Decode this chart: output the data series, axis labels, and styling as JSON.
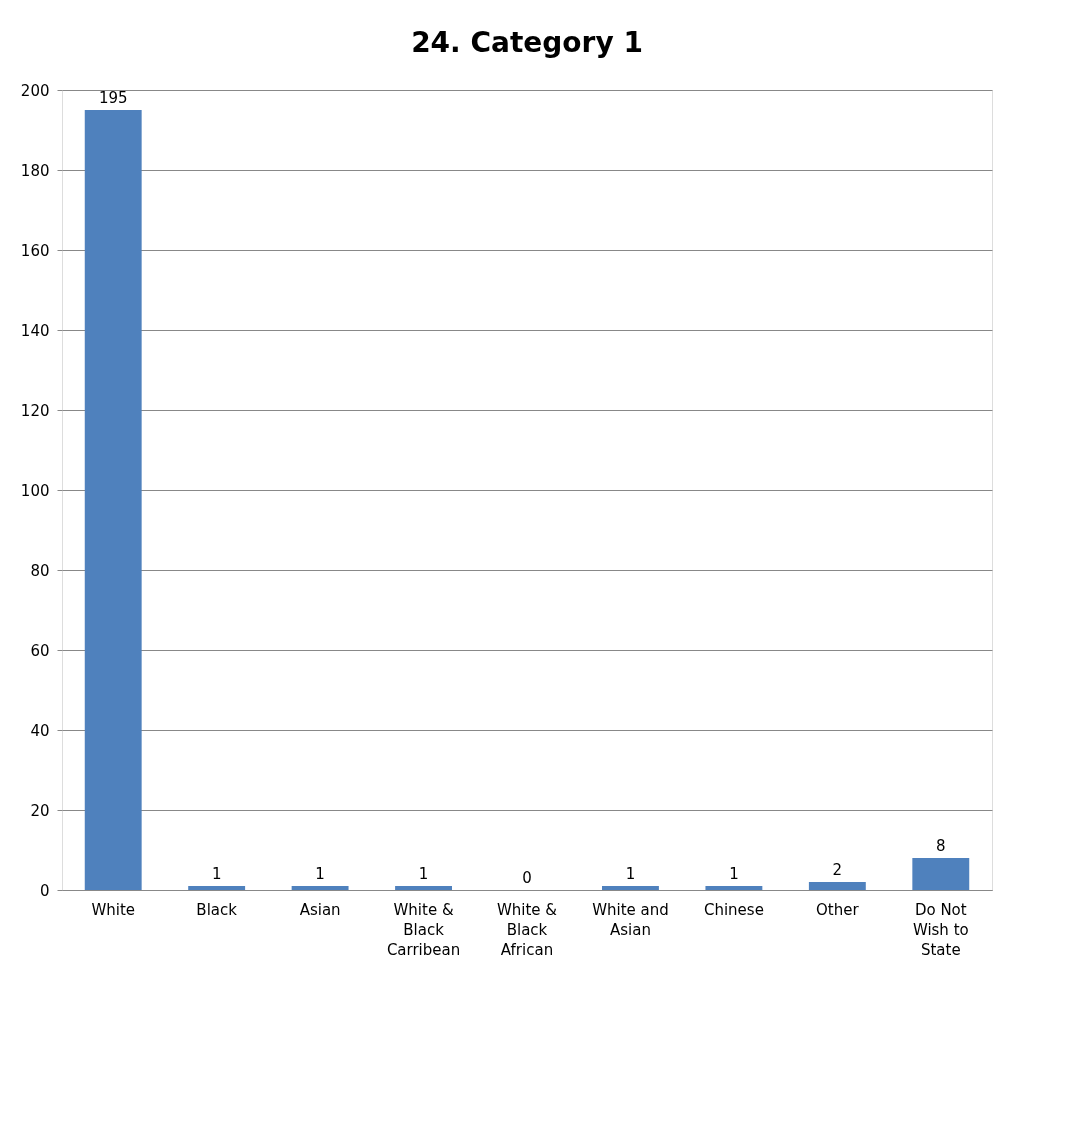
{
  "chart_data": {
    "type": "bar",
    "title": "24. Category 1",
    "categories": [
      "White",
      "Black",
      "Asian",
      "White & Black Carribean",
      "White & Black African",
      "White and Asian",
      "Chinese",
      "Other",
      "Do Not Wish to State"
    ],
    "values": [
      195,
      1,
      1,
      1,
      0,
      1,
      1,
      2,
      8
    ],
    "color": "#4f81bd",
    "ylim": [
      0,
      200
    ],
    "yticks": [
      0,
      20,
      40,
      60,
      80,
      100,
      120,
      140,
      160,
      180,
      200
    ],
    "grid": "y",
    "data_labels": true
  }
}
